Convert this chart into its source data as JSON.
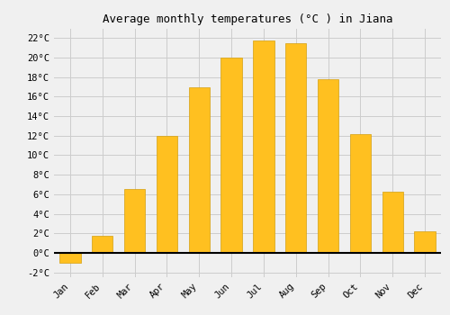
{
  "title": "Average monthly temperatures (°C ) in Jiana",
  "months": [
    "Jan",
    "Feb",
    "Mar",
    "Apr",
    "May",
    "Jun",
    "Jul",
    "Aug",
    "Sep",
    "Oct",
    "Nov",
    "Dec"
  ],
  "values": [
    -1,
    1.7,
    6.5,
    12,
    17,
    20,
    21.8,
    21.5,
    17.8,
    12.2,
    6.3,
    2.2
  ],
  "bar_color": "#FFC020",
  "bar_edge_color": "#D4A010",
  "background_color": "#F0F0F0",
  "grid_color": "#CCCCCC",
  "ylim": [
    -2.5,
    23
  ],
  "yticks": [
    -2,
    0,
    2,
    4,
    6,
    8,
    10,
    12,
    14,
    16,
    18,
    20,
    22
  ],
  "title_fontsize": 9,
  "tick_fontsize": 7.5,
  "font_family": "monospace"
}
